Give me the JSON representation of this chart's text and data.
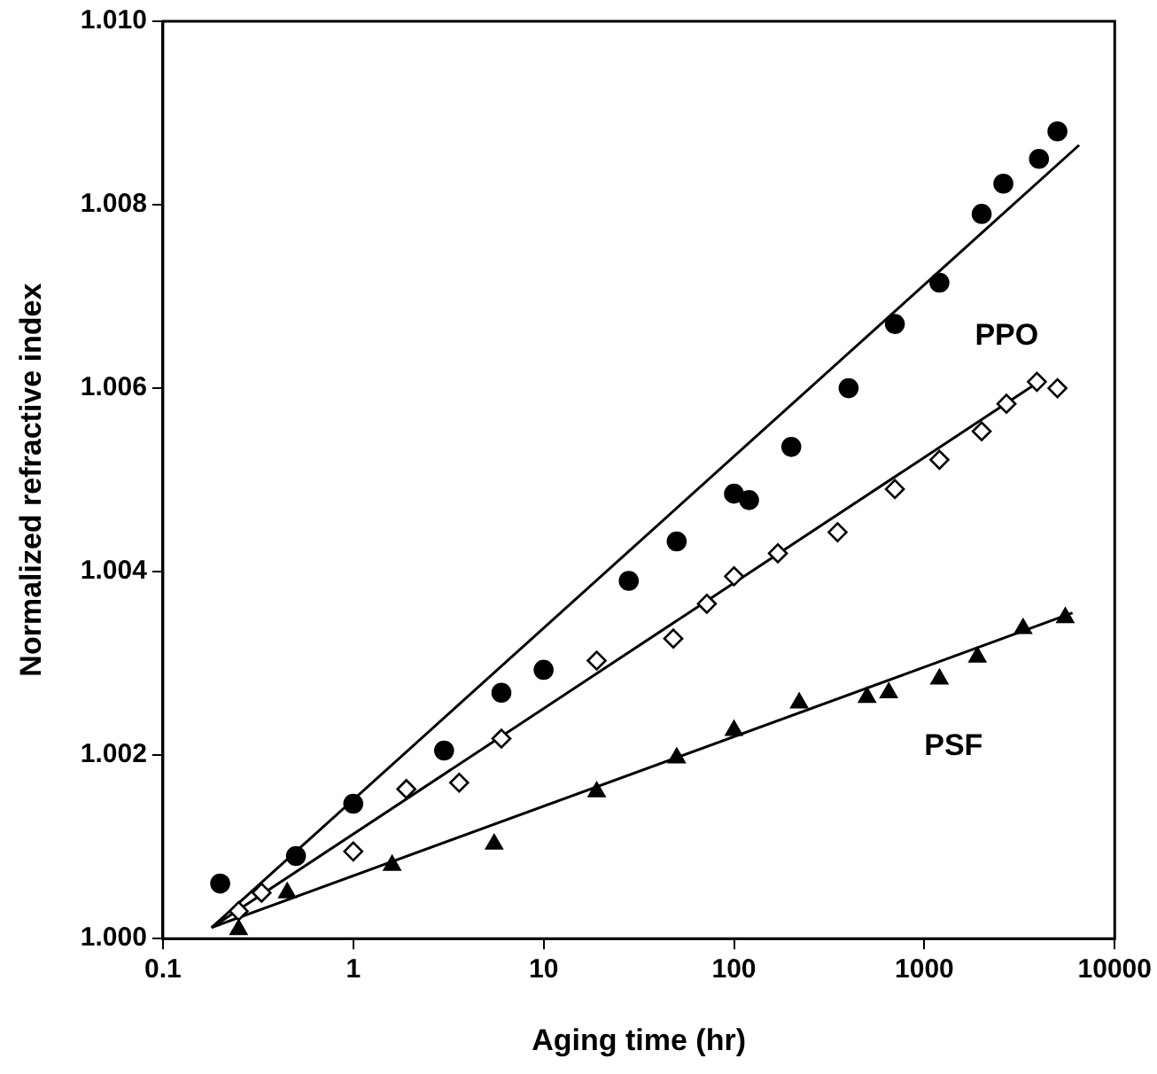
{
  "chart_data": {
    "type": "scatter",
    "xlabel": "Aging time (hr)",
    "ylabel": "Normalized refractive index",
    "log": "x",
    "xlim": [
      0.1,
      10000
    ],
    "xticks": [
      0.1,
      1,
      10,
      100,
      1000,
      10000
    ],
    "ylim": [
      1.0,
      1.01
    ],
    "yticks": [
      {
        "value": 1.0,
        "label": "1.000"
      },
      {
        "value": 1.002,
        "label": "1.002"
      },
      {
        "value": 1.004,
        "label": "1.004"
      },
      {
        "value": 1.006,
        "label": "1.006"
      },
      {
        "value": 1.008,
        "label": "1.008"
      },
      {
        "value": 1.01,
        "label": "1.010"
      }
    ],
    "grid": false,
    "legend": false,
    "series": [
      {
        "name": "PPO",
        "marker": "circle",
        "color": "#000000",
        "x": [
          0.2,
          0.5,
          1,
          3,
          6,
          10,
          28,
          50,
          100,
          120,
          200,
          400,
          700,
          1200,
          2000,
          2600,
          4000,
          5000
        ],
        "values": [
          1.0006,
          1.0009,
          1.00147,
          1.00205,
          1.00268,
          1.00293,
          1.0039,
          1.00433,
          1.00485,
          1.00478,
          1.00536,
          1.006,
          1.0067,
          1.00715,
          1.0079,
          1.00823,
          1.0085,
          1.0088
        ]
      },
      {
        "marker": "diamond",
        "color": "#000000",
        "x": [
          0.25,
          0.33,
          1,
          1.9,
          3.6,
          6,
          19,
          48,
          72,
          100,
          170,
          350,
          700,
          1200,
          2000,
          2700,
          3900,
          5000
        ],
        "values": [
          1.0003,
          1.0005,
          1.00095,
          1.00163,
          1.0017,
          1.00218,
          1.00303,
          1.00327,
          1.00365,
          1.00395,
          1.0042,
          1.00443,
          1.0049,
          1.00522,
          1.00553,
          1.00583,
          1.00607,
          1.006
        ]
      },
      {
        "name": "PSF",
        "marker": "triangle",
        "color": "#000000",
        "x": [
          0.25,
          0.45,
          1.6,
          5.5,
          19,
          50,
          100,
          220,
          500,
          650,
          1200,
          1900,
          3300,
          5500
        ],
        "values": [
          1.0001,
          1.0005,
          1.0008,
          1.00103,
          1.0016,
          1.00197,
          1.00227,
          1.00257,
          1.00263,
          1.00268,
          1.00283,
          1.00307,
          1.00338,
          1.0035
        ]
      },
      {
        "type": "line",
        "marker": "none",
        "color": "#000000",
        "x": [
          0.18,
          6500
        ],
        "values": [
          1.00012,
          1.00865
        ]
      },
      {
        "type": "line",
        "marker": "none",
        "color": "#000000",
        "x": [
          0.18,
          4000
        ],
        "values": [
          1.00012,
          1.00607
        ]
      },
      {
        "type": "line",
        "marker": "none",
        "color": "#000000",
        "x": [
          0.18,
          6000
        ],
        "values": [
          1.00012,
          1.00355
        ]
      }
    ]
  }
}
